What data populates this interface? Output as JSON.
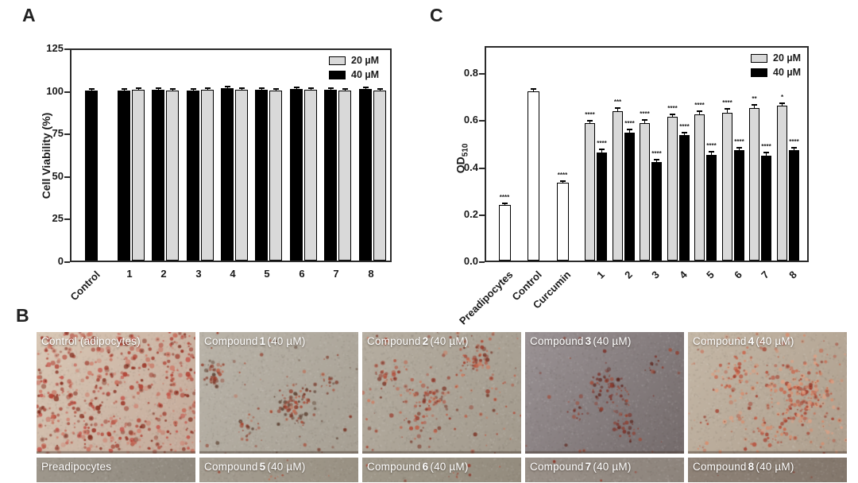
{
  "figure": {
    "panel_a": {
      "label": "A"
    },
    "panel_b": {
      "label": "B"
    },
    "panel_c": {
      "label": "C"
    }
  },
  "chart_data": [
    {
      "id": "viability",
      "panel": "A",
      "type": "bar",
      "title": "",
      "ylabel": "Cell Viability (%)",
      "ylim": [
        0,
        126
      ],
      "yticks": [
        "0",
        "25",
        "50",
        "75",
        "100",
        "125"
      ],
      "ytick_values": [
        0,
        25,
        50,
        75,
        100,
        125
      ],
      "categories": [
        "Control",
        "1",
        "2",
        "3",
        "4",
        "5",
        "6",
        "7",
        "8"
      ],
      "legend": [
        {
          "label": "20 µM",
          "color": "#d9d9d9"
        },
        {
          "label": "40 µM",
          "color": "#000000"
        }
      ],
      "grid": false,
      "legend_position": "top-right",
      "series": [
        {
          "name": "40 µM",
          "color": "#000000",
          "values": [
            100,
            100,
            100.3,
            100,
            101.3,
            100.4,
            100.8,
            100.3,
            100.8
          ],
          "errors": [
            0.4,
            0.5,
            0.5,
            0.5,
            0.5,
            0.5,
            0.5,
            0.5,
            0.5
          ],
          "stars": [
            null,
            null,
            null,
            null,
            null,
            null,
            null,
            null,
            null
          ]
        },
        {
          "name": "20 µM",
          "color": "#d9d9d9",
          "values": [
            null,
            100.4,
            100,
            100.3,
            100.4,
            100,
            100.3,
            99.8,
            99.8
          ],
          "errors": [
            null,
            0.5,
            0.5,
            0.5,
            0.5,
            0.5,
            0.5,
            0.5,
            0.5
          ],
          "stars": [
            null,
            null,
            null,
            null,
            null,
            null,
            null,
            null,
            null
          ]
        }
      ]
    },
    {
      "id": "od510",
      "panel": "C",
      "type": "bar",
      "title": "",
      "ylabel_main": "OD",
      "ylabel_sub": "510",
      "ylim": [
        0,
        0.9
      ],
      "yticks": [
        "0.0",
        "0.2",
        "0.4",
        "0.6",
        "0.8"
      ],
      "ytick_values": [
        0,
        0.2,
        0.4,
        0.6,
        0.8
      ],
      "categories": [
        "Preadipocytes",
        "Control",
        "Curcumin",
        "1",
        "2",
        "3",
        "4",
        "5",
        "6",
        "7",
        "8"
      ],
      "legend": [
        {
          "label": "20 µM",
          "color": "#d9d9d9"
        },
        {
          "label": "40 µM",
          "color": "#000000"
        }
      ],
      "grid": false,
      "legend_position": "top-right",
      "series": [
        {
          "name": "",
          "color": "#ffffff",
          "values": [
            0.235,
            0.72,
            0.33,
            null,
            null,
            null,
            null,
            null,
            null,
            null,
            null
          ],
          "errors": [
            0.005,
            0.007,
            0.005,
            null,
            null,
            null,
            null,
            null,
            null,
            null,
            null
          ],
          "stars": [
            "****",
            null,
            "****",
            null,
            null,
            null,
            null,
            null,
            null,
            null,
            null
          ]
        },
        {
          "name": "20 µM",
          "color": "#d9d9d9",
          "values": [
            null,
            null,
            null,
            0.585,
            0.635,
            0.585,
            0.61,
            0.62,
            0.63,
            0.65,
            0.66
          ],
          "errors": [
            null,
            null,
            null,
            0.005,
            0.012,
            0.009,
            0.007,
            0.011,
            0.012,
            0.01,
            0.006
          ],
          "stars": [
            null,
            null,
            null,
            "****",
            "***",
            "****",
            "****",
            "****",
            "****",
            "**",
            "*"
          ]
        },
        {
          "name": "40 µM",
          "color": "#000000",
          "values": [
            null,
            null,
            null,
            0.46,
            0.545,
            0.42,
            0.535,
            0.45,
            0.47,
            0.445,
            0.47
          ],
          "errors": [
            null,
            null,
            null,
            0.008,
            0.01,
            0.006,
            0.006,
            0.008,
            0.008,
            0.01,
            0.008
          ],
          "stars": [
            null,
            null,
            null,
            "****",
            "****",
            "****",
            "****",
            "****",
            "****",
            "****",
            "****"
          ]
        }
      ]
    }
  ],
  "micrographs": {
    "rows": [
      [
        {
          "label": {
            "pre": "Control (adipocytes)",
            "num": "",
            "post": ""
          },
          "appearance": {
            "bg1": "#d9c8b6",
            "bg2": "#c3a999",
            "uniform": 520,
            "min_r": 1,
            "max_r": 3.2,
            "palette": [
              "#c5544a",
              "#b03c2e",
              "#9c3426",
              "#d0806e",
              "#873122",
              "#c76a58"
            ],
            "clusters": []
          }
        },
        {
          "label": {
            "pre": "Compound",
            "num": "1",
            "post": "(40 µM)"
          },
          "appearance": {
            "bg1": "#bab4a9",
            "bg2": "#a7a094",
            "uniform": 50,
            "min_r": 0.8,
            "max_r": 2.6,
            "palette": [
              "#a8442f",
              "#7e3a2a",
              "#c06a50",
              "#5f4334",
              "#93402f"
            ],
            "clusters": [
              {
                "x": 0.09,
                "y": 0.33,
                "r": 0.1,
                "n": 42
              },
              {
                "x": 0.6,
                "y": 0.6,
                "r": 0.16,
                "n": 80
              },
              {
                "x": 0.3,
                "y": 0.78,
                "r": 0.09,
                "n": 22
              },
              {
                "x": 0.82,
                "y": 0.42,
                "r": 0.07,
                "n": 12
              }
            ]
          }
        },
        {
          "label": {
            "pre": "Compound",
            "num": "2",
            "post": "(40 µM)"
          },
          "appearance": {
            "bg1": "#b6aea1",
            "bg2": "#a29a8d",
            "uniform": 110,
            "min_r": 0.8,
            "max_r": 2.8,
            "palette": [
              "#b34a36",
              "#98392a",
              "#cf7a5e",
              "#7c3526",
              "#c05a42"
            ],
            "clusters": [
              {
                "x": 0.72,
                "y": 0.22,
                "r": 0.13,
                "n": 45
              },
              {
                "x": 0.44,
                "y": 0.56,
                "r": 0.22,
                "n": 70
              },
              {
                "x": 0.15,
                "y": 0.35,
                "r": 0.1,
                "n": 18
              }
            ]
          }
        },
        {
          "label": {
            "pre": "Compound",
            "num": "3",
            "post": "(40 µM)"
          },
          "appearance": {
            "bg1": "#9b9395",
            "bg2": "#746b6b",
            "uniform": 26,
            "min_r": 0.8,
            "max_r": 2.6,
            "palette": [
              "#7c3028",
              "#8f3c2e",
              "#5e261e",
              "#a04c3a"
            ],
            "clusters": [
              {
                "x": 0.52,
                "y": 0.46,
                "r": 0.17,
                "n": 65
              },
              {
                "x": 0.62,
                "y": 0.78,
                "r": 0.11,
                "n": 26
              },
              {
                "x": 0.82,
                "y": 0.28,
                "r": 0.07,
                "n": 12
              },
              {
                "x": 0.33,
                "y": 0.64,
                "r": 0.09,
                "n": 16
              }
            ]
          }
        },
        {
          "label": {
            "pre": "Compound",
            "num": "4",
            "post": "(40 µM)"
          },
          "appearance": {
            "bg1": "#c4b7a6",
            "bg2": "#ae9f8e",
            "uniform": 150,
            "min_r": 0.8,
            "max_r": 2.8,
            "palette": [
              "#c9664c",
              "#b84e3a",
              "#da8a6a",
              "#a43f2e",
              "#e0a184"
            ],
            "clusters": [
              {
                "x": 0.7,
                "y": 0.5,
                "r": 0.24,
                "n": 190
              },
              {
                "x": 0.3,
                "y": 0.36,
                "r": 0.16,
                "n": 50
              },
              {
                "x": 0.55,
                "y": 0.8,
                "r": 0.12,
                "n": 30
              }
            ]
          }
        }
      ],
      [
        {
          "label": {
            "pre": "Preadipocytes",
            "num": "",
            "post": ""
          },
          "appearance": {
            "bg1": "#9e978c",
            "bg2": "#90897e",
            "uniform": 0,
            "min_r": 0.8,
            "max_r": 2,
            "palette": [],
            "clusters": []
          }
        },
        {
          "label": {
            "pre": "Compound",
            "num": "5",
            "post": "(40 µM)"
          },
          "appearance": {
            "bg1": "#a59e92",
            "bg2": "#999183",
            "uniform": 4,
            "min_r": 0.8,
            "max_r": 2.2,
            "palette": [
              "#a8442f",
              "#c06a50"
            ],
            "clusters": [
              {
                "x": 0.5,
                "y": 0.8,
                "r": 0.1,
                "n": 5
              }
            ]
          }
        },
        {
          "label": {
            "pre": "Compound",
            "num": "6",
            "post": "(40 µM)"
          },
          "appearance": {
            "bg1": "#a0998b",
            "bg2": "#948c7e",
            "uniform": 5,
            "min_r": 0.8,
            "max_r": 2.2,
            "palette": [
              "#b34a36",
              "#98392a"
            ],
            "clusters": [
              {
                "x": 0.6,
                "y": 0.7,
                "r": 0.12,
                "n": 6
              }
            ]
          }
        },
        {
          "label": {
            "pre": "Compound",
            "num": "7",
            "post": "(40 µM)"
          },
          "appearance": {
            "bg1": "#9a9189",
            "bg2": "#8d847c",
            "uniform": 3,
            "min_r": 0.8,
            "max_r": 2,
            "palette": [
              "#98392a"
            ],
            "clusters": []
          }
        },
        {
          "label": {
            "pre": "Compound",
            "num": "8",
            "post": "(40 µM)"
          },
          "appearance": {
            "bg1": "#8f8378",
            "bg2": "#83776c",
            "uniform": 3,
            "min_r": 0.8,
            "max_r": 2,
            "palette": [
              "#8f3c2e"
            ],
            "clusters": []
          }
        }
      ]
    ]
  }
}
